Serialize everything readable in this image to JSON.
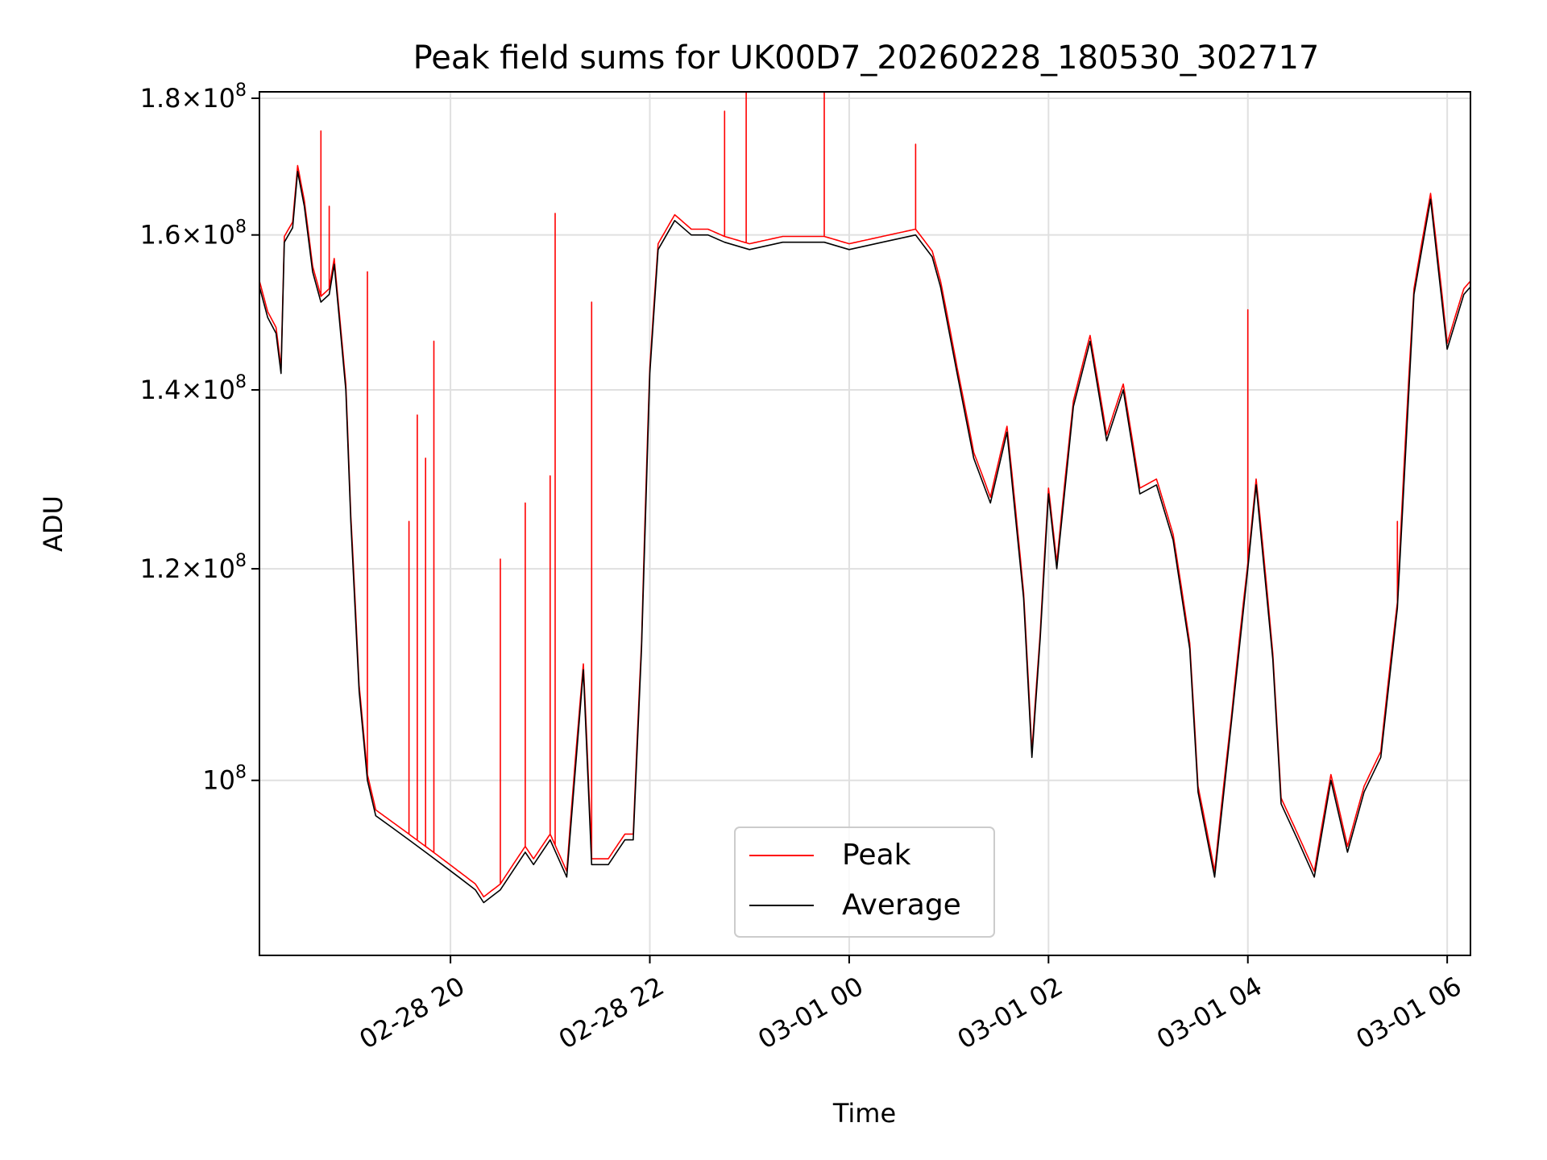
{
  "chart_data": {
    "type": "line",
    "title": "Peak field sums for UK00D7_20260228_180530_302717",
    "xlabel": "Time",
    "ylabel": "ADU",
    "yscale": "log",
    "grid": true,
    "legend_position": "lower center",
    "x_tick_labels": [
      "02-28 20",
      "02-28 22",
      "03-01 00",
      "03-01 02",
      "03-01 04",
      "03-01 06"
    ],
    "x_ticks": [
      "2026-02-28 20:00",
      "2026-02-28 22:00",
      "2026-03-01 00:00",
      "2026-03-01 02:00",
      "2026-03-01 04:00",
      "2026-03-01 06:00"
    ],
    "y_ticks": [
      {
        "value": 100000000,
        "mantissa": "",
        "exponent": "8"
      },
      {
        "value": 120000000,
        "mantissa": "1.2",
        "exponent": "8"
      },
      {
        "value": 140000000,
        "mantissa": "1.4",
        "exponent": "8"
      },
      {
        "value": 160000000,
        "mantissa": "1.6",
        "exponent": "8"
      },
      {
        "value": 180000000,
        "mantissa": "1.8",
        "exponent": "8"
      }
    ],
    "xlim": [
      "2026-02-28 18:05",
      "2026-03-01 06:14"
    ],
    "ylim": [
      86000000,
      181000000
    ],
    "series": [
      {
        "name": "Average",
        "color": "#000000",
        "points": [
          [
            "2026-02-28 18:05",
            153
          ],
          [
            "2026-02-28 18:10",
            149
          ],
          [
            "2026-02-28 18:15",
            147
          ],
          [
            "2026-02-28 18:18",
            142
          ],
          [
            "2026-02-28 18:20",
            159
          ],
          [
            "2026-02-28 18:25",
            161
          ],
          [
            "2026-02-28 18:28",
            169
          ],
          [
            "2026-02-28 18:32",
            164
          ],
          [
            "2026-02-28 18:37",
            155
          ],
          [
            "2026-02-28 18:42",
            151
          ],
          [
            "2026-02-28 18:47",
            152
          ],
          [
            "2026-02-28 18:50",
            156
          ],
          [
            "2026-02-28 18:53",
            149
          ],
          [
            "2026-02-28 18:57",
            140
          ],
          [
            "2026-02-28 19:00",
            125
          ],
          [
            "2026-02-28 19:05",
            108
          ],
          [
            "2026-02-28 19:10",
            100
          ],
          [
            "2026-02-28 19:15",
            97
          ],
          [
            "2026-02-28 19:25",
            96
          ],
          [
            "2026-02-28 19:35",
            95
          ],
          [
            "2026-02-28 19:45",
            94
          ],
          [
            "2026-02-28 19:55",
            93
          ],
          [
            "2026-02-28 20:05",
            92
          ],
          [
            "2026-02-28 20:15",
            91
          ],
          [
            "2026-02-28 20:20",
            90
          ],
          [
            "2026-02-28 20:30",
            91
          ],
          [
            "2026-02-28 20:45",
            94
          ],
          [
            "2026-02-28 20:50",
            93
          ],
          [
            "2026-02-28 21:00",
            95
          ],
          [
            "2026-02-28 21:10",
            92
          ],
          [
            "2026-02-28 21:20",
            110
          ],
          [
            "2026-02-28 21:25",
            93
          ],
          [
            "2026-02-28 21:35",
            93
          ],
          [
            "2026-02-28 21:45",
            95
          ],
          [
            "2026-02-28 21:50",
            95
          ],
          [
            "2026-02-28 21:55",
            112
          ],
          [
            "2026-02-28 22:00",
            142
          ],
          [
            "2026-02-28 22:05",
            158
          ],
          [
            "2026-02-28 22:15",
            162
          ],
          [
            "2026-02-28 22:25",
            160
          ],
          [
            "2026-02-28 22:35",
            160
          ],
          [
            "2026-02-28 22:45",
            159
          ],
          [
            "2026-02-28 23:00",
            158
          ],
          [
            "2026-02-28 23:20",
            159
          ],
          [
            "2026-02-28 23:45",
            159
          ],
          [
            "2026-03-01 00:00",
            158
          ],
          [
            "2026-03-01 00:20",
            159
          ],
          [
            "2026-03-01 00:40",
            160
          ],
          [
            "2026-03-01 00:50",
            157
          ],
          [
            "2026-03-01 00:55",
            153
          ],
          [
            "2026-03-01 01:05",
            142
          ],
          [
            "2026-03-01 01:15",
            132
          ],
          [
            "2026-03-01 01:25",
            127
          ],
          [
            "2026-03-01 01:35",
            135
          ],
          [
            "2026-03-01 01:45",
            117
          ],
          [
            "2026-03-01 01:50",
            102
          ],
          [
            "2026-03-01 01:55",
            113
          ],
          [
            "2026-03-01 02:00",
            128
          ],
          [
            "2026-03-01 02:05",
            120
          ],
          [
            "2026-03-01 02:15",
            138
          ],
          [
            "2026-03-01 02:25",
            146
          ],
          [
            "2026-03-01 02:35",
            134
          ],
          [
            "2026-03-01 02:45",
            140
          ],
          [
            "2026-03-01 02:55",
            128
          ],
          [
            "2026-03-01 03:05",
            129
          ],
          [
            "2026-03-01 03:15",
            123
          ],
          [
            "2026-03-01 03:25",
            112
          ],
          [
            "2026-03-01 03:30",
            99
          ],
          [
            "2026-03-01 03:40",
            92
          ],
          [
            "2026-03-01 03:50",
            105
          ],
          [
            "2026-03-01 04:00",
            120
          ],
          [
            "2026-03-01 04:05",
            129
          ],
          [
            "2026-03-01 04:15",
            111
          ],
          [
            "2026-03-01 04:20",
            98
          ],
          [
            "2026-03-01 04:30",
            95
          ],
          [
            "2026-03-01 04:40",
            92
          ],
          [
            "2026-03-01 04:50",
            100
          ],
          [
            "2026-03-01 05:00",
            94
          ],
          [
            "2026-03-01 05:10",
            99
          ],
          [
            "2026-03-01 05:20",
            102
          ],
          [
            "2026-03-01 05:30",
            116
          ],
          [
            "2026-03-01 05:40",
            152
          ],
          [
            "2026-03-01 05:50",
            165
          ],
          [
            "2026-03-01 06:00",
            145
          ],
          [
            "2026-03-01 06:10",
            152
          ],
          [
            "2026-03-01 06:14",
            153
          ]
        ]
      },
      {
        "name": "Peak",
        "color": "#ff0000",
        "spikes": [
          [
            "2026-02-28 18:42",
            175
          ],
          [
            "2026-02-28 18:47",
            164
          ],
          [
            "2026-02-28 19:10",
            155
          ],
          [
            "2026-02-28 19:35",
            125
          ],
          [
            "2026-02-28 19:40",
            137
          ],
          [
            "2026-02-28 19:45",
            132
          ],
          [
            "2026-02-28 19:50",
            146
          ],
          [
            "2026-02-28 20:30",
            121
          ],
          [
            "2026-02-28 20:45",
            127
          ],
          [
            "2026-02-28 21:00",
            130
          ],
          [
            "2026-02-28 21:03",
            163
          ],
          [
            "2026-02-28 21:25",
            151
          ],
          [
            "2026-02-28 22:45",
            178
          ],
          [
            "2026-02-28 22:58",
            189
          ],
          [
            "2026-02-28 23:45",
            182
          ],
          [
            "2026-03-01 00:40",
            173
          ],
          [
            "2026-03-01 04:00",
            150
          ],
          [
            "2026-03-01 05:30",
            125
          ]
        ]
      }
    ]
  }
}
